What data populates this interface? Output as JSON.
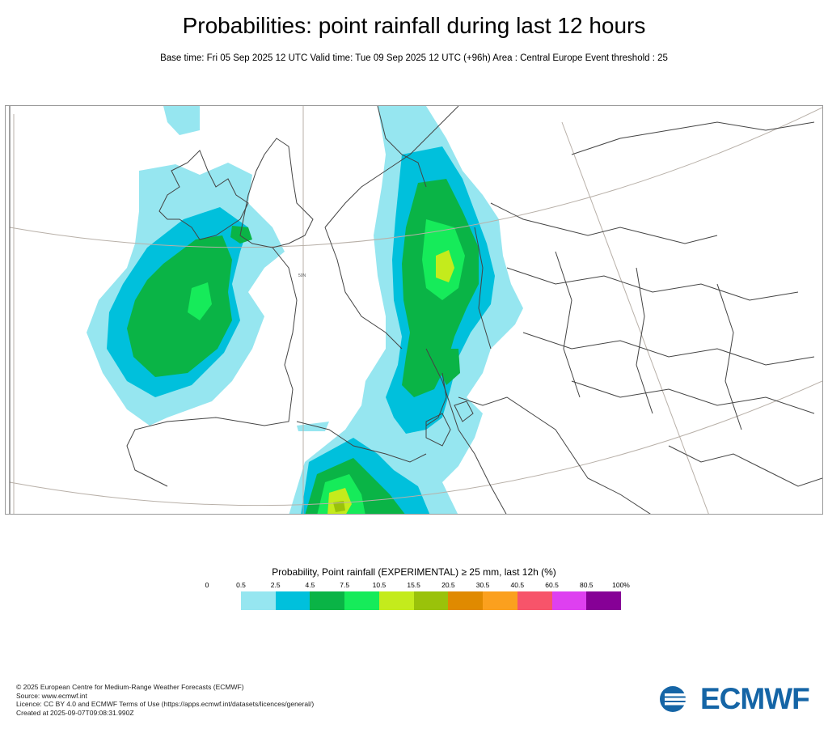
{
  "title": "Probabilities: point rainfall during last 12 hours",
  "subtitle": "Base time: Fri 05 Sep 2025 12 UTC Valid time: Tue 09 Sep 2025 12 UTC (+96h) Area : Central Europe Event threshold : 25",
  "map": {
    "latitude_label": "50N",
    "colors": {
      "land_outline": "#444444",
      "graticule": "#b8b0a8"
    }
  },
  "legend": {
    "title": "Probability, Point rainfall (EXPERIMENTAL) ≥ 25 mm, last 12h (%)",
    "labels": [
      "0",
      "0.5",
      "2.5",
      "4.5",
      "7.5",
      "10.5",
      "15.5",
      "20.5",
      "30.5",
      "40.5",
      "60.5",
      "80.5",
      "100%"
    ],
    "colors": [
      "#96e6f0",
      "#00c0dc",
      "#0ab446",
      "#16eb5a",
      "#c4eb1c",
      "#9ac20a",
      "#e08a00",
      "#fba01e",
      "#f7546a",
      "#de40f0",
      "#860096"
    ]
  },
  "footer": {
    "copyright": "© 2025 European Centre for Medium-Range Weather Forecasts (ECMWF)",
    "source": "Source: www.ecmwf.int",
    "licence": "Licence: CC BY 4.0 and ECMWF Terms of Use (https://apps.ecmwf.int/datasets/licences/general/)",
    "created": "Created at 2025-09-07T09:08:31.990Z"
  },
  "logo": {
    "text": "ECMWF",
    "color": "#1565a6"
  }
}
